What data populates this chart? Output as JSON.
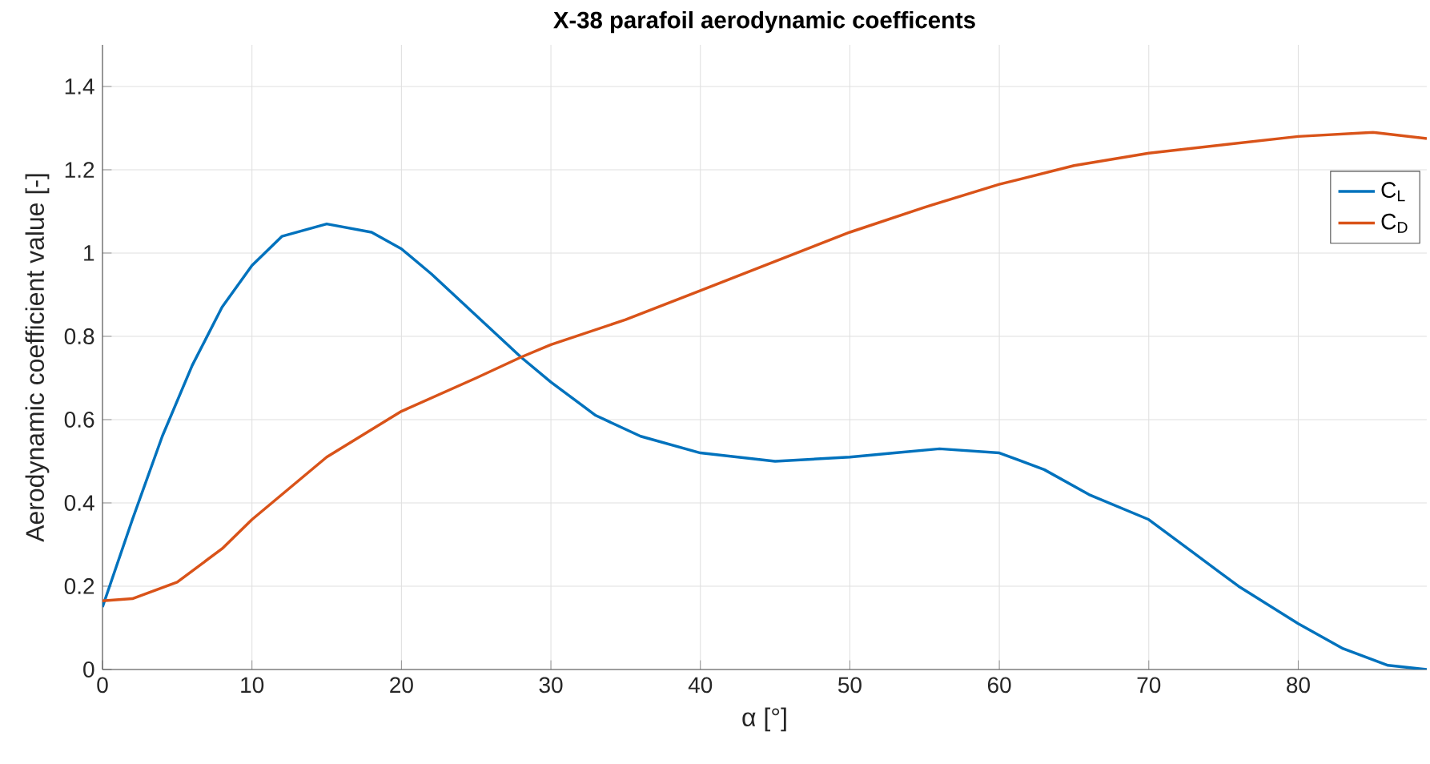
{
  "chart_data": {
    "type": "line",
    "title": "X-38 parafoil aerodynamic coefficents",
    "xlabel": "α [°]",
    "ylabel": "Aerodynamic coefficient value [-]",
    "xlim": [
      0,
      88.6
    ],
    "ylim": [
      0,
      1.5
    ],
    "xticks": [
      0,
      10,
      20,
      30,
      40,
      50,
      60,
      70,
      80
    ],
    "yticks": [
      0,
      0.2,
      0.4,
      0.6,
      0.8,
      1,
      1.2,
      1.4
    ],
    "grid": true,
    "legend": "right",
    "line_style": "solid",
    "marker": "none",
    "series": [
      {
        "name": "C$_{L}$",
        "color": "#0072bd",
        "x": [
          0,
          2,
          4,
          6,
          8,
          10,
          12,
          15,
          18,
          20,
          22,
          25,
          28,
          30,
          33,
          36,
          40,
          45,
          50,
          53,
          56,
          60,
          63,
          66,
          70,
          73,
          76,
          80,
          83,
          86,
          88.6
        ],
        "values": [
          0.15,
          0.36,
          0.56,
          0.73,
          0.87,
          0.97,
          1.04,
          1.07,
          1.05,
          1.01,
          0.95,
          0.85,
          0.75,
          0.69,
          0.61,
          0.56,
          0.52,
          0.5,
          0.51,
          0.52,
          0.53,
          0.52,
          0.48,
          0.42,
          0.36,
          0.28,
          0.2,
          0.11,
          0.05,
          0.01,
          0
        ]
      },
      {
        "name": "C$_{D}$",
        "color": "#d95319",
        "x": [
          0,
          2,
          5,
          8,
          10,
          15,
          20,
          25,
          28,
          30,
          35,
          40,
          45,
          50,
          55,
          60,
          65,
          70,
          75,
          80,
          85,
          88.6
        ],
        "values": [
          0.165,
          0.17,
          0.21,
          0.29,
          0.36,
          0.51,
          0.62,
          0.7,
          0.75,
          0.78,
          0.84,
          0.91,
          0.98,
          1.05,
          1.11,
          1.165,
          1.21,
          1.24,
          1.26,
          1.28,
          1.29,
          1.275
        ]
      }
    ]
  }
}
